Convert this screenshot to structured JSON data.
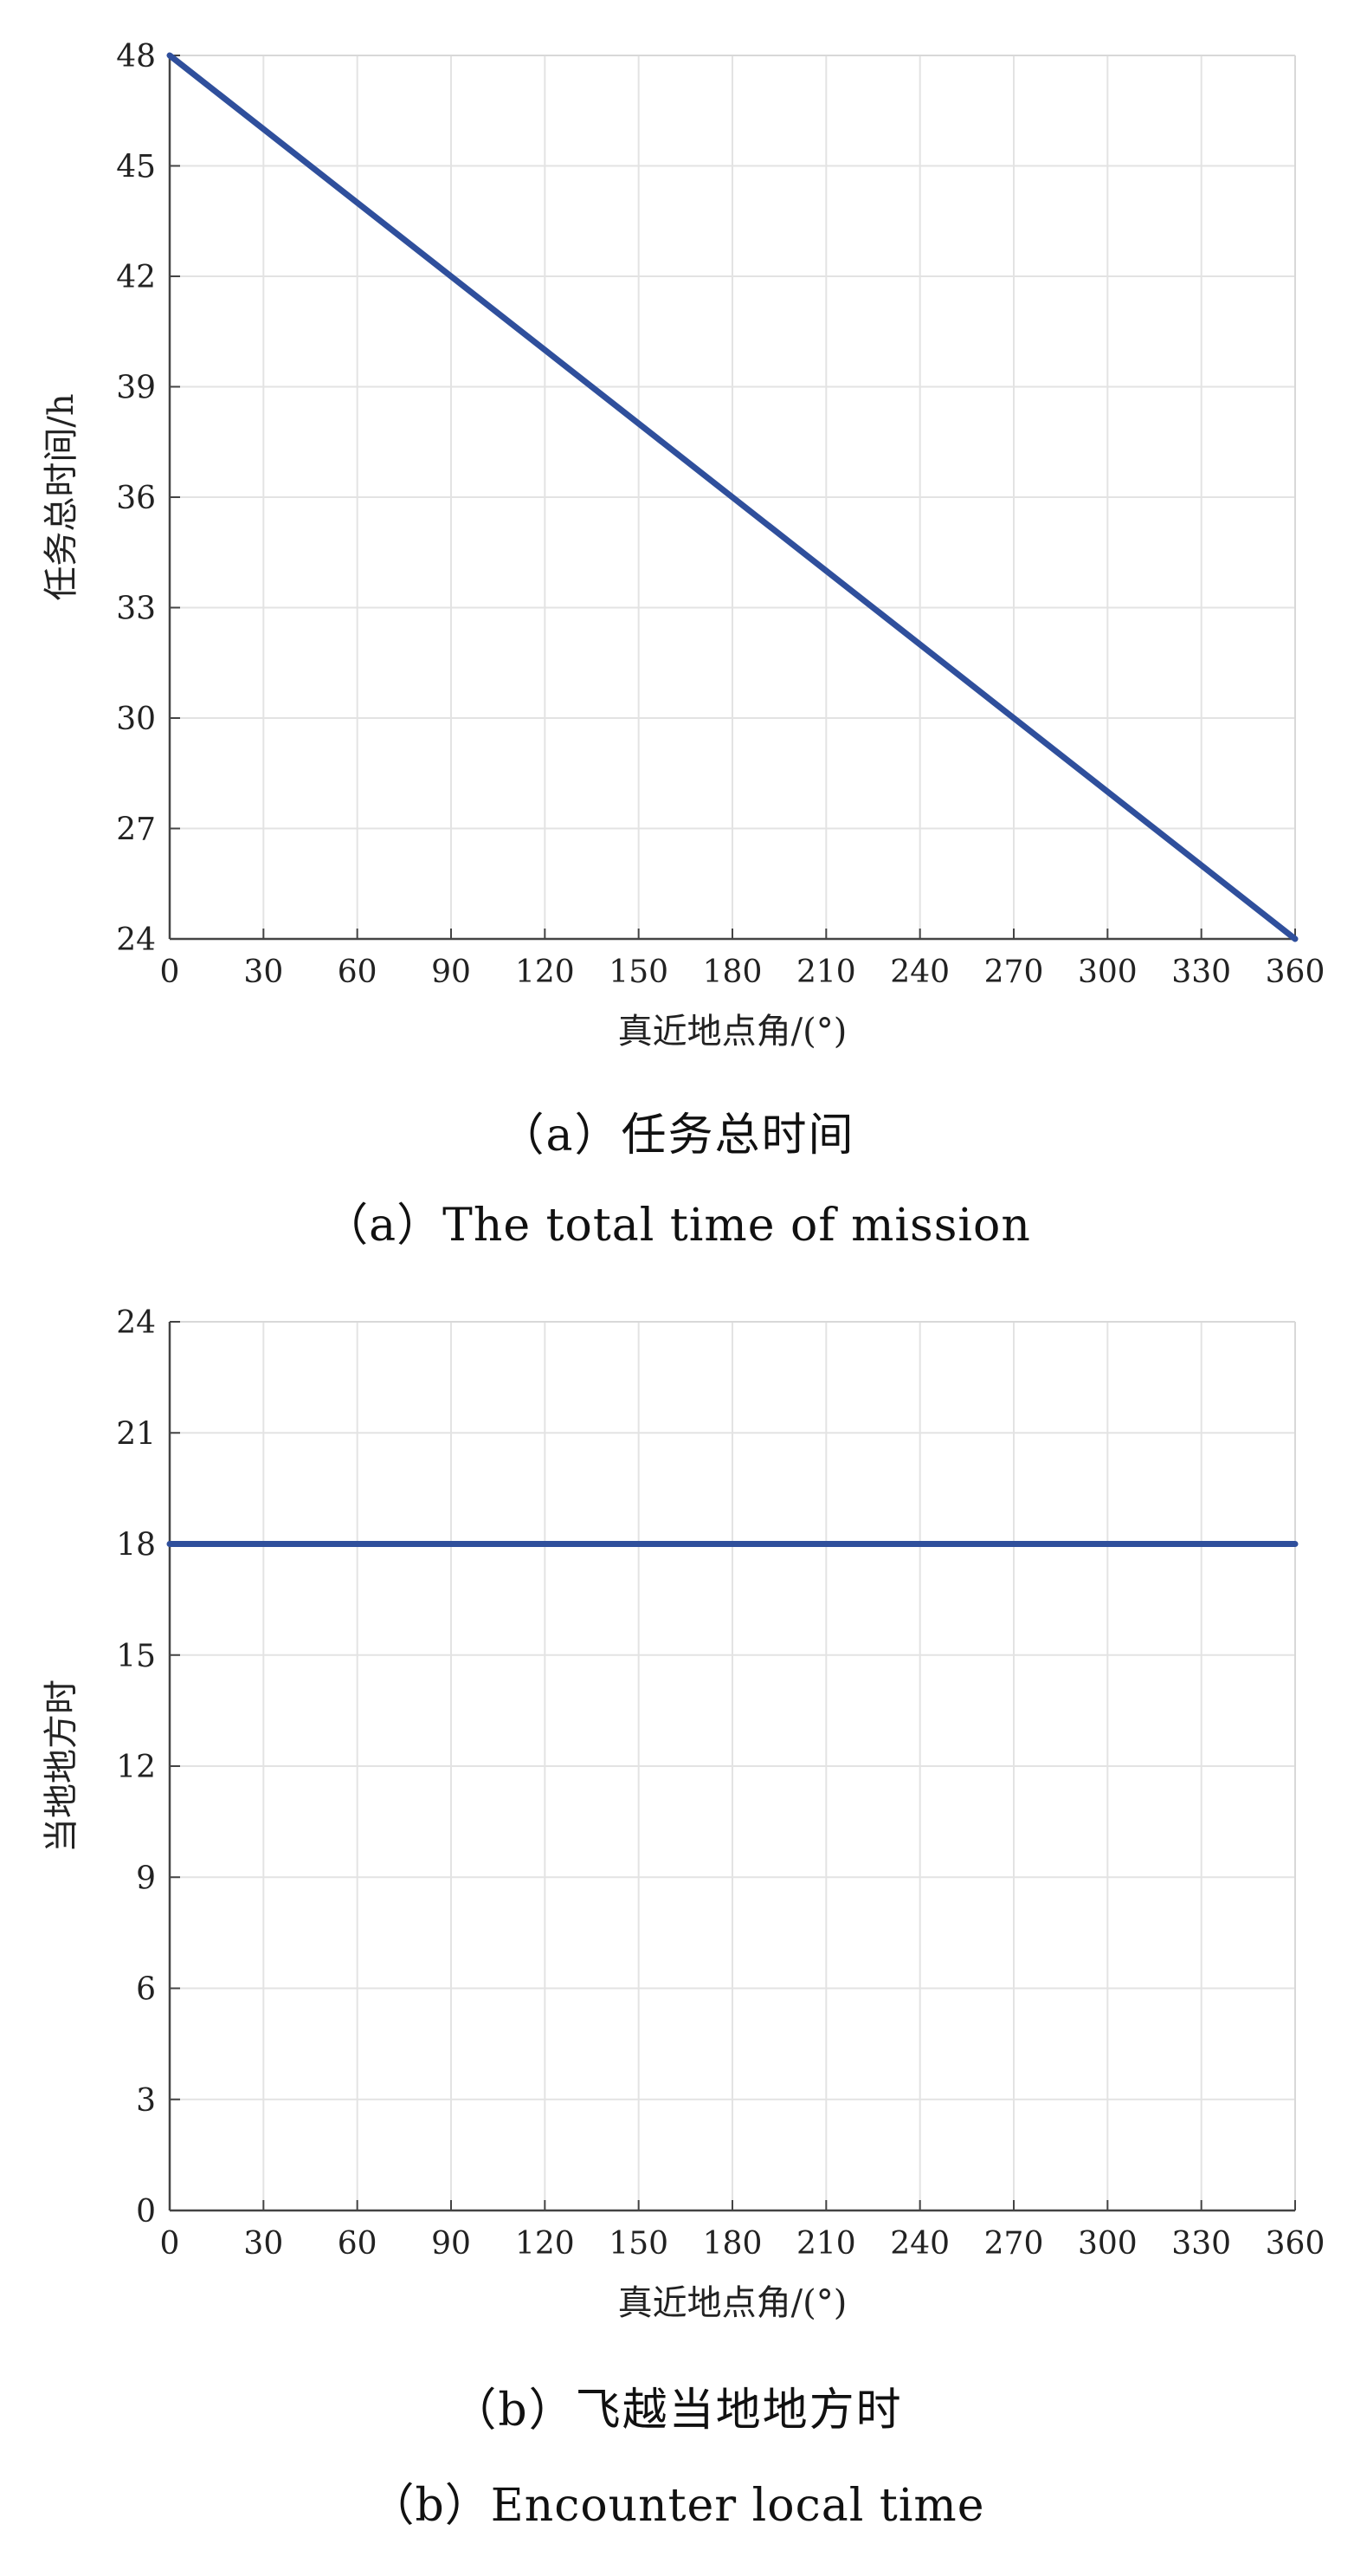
{
  "charts": [
    {
      "caption_cn": "（a）任务总时间",
      "caption_en": "（a）The total time of mission"
    },
    {
      "caption_cn": "（b）飞越当地地方时",
      "caption_en": "（b）Encounter local time"
    }
  ],
  "chart_data": [
    {
      "type": "line",
      "title": "",
      "xlabel": "真近地点角/(°)",
      "ylabel": "任务总时间/h",
      "xlim": [
        0,
        360
      ],
      "ylim": [
        24,
        48
      ],
      "x_ticks": [
        0,
        30,
        60,
        90,
        120,
        150,
        180,
        210,
        240,
        270,
        300,
        330,
        360
      ],
      "y_ticks": [
        24,
        27,
        30,
        33,
        36,
        39,
        42,
        45,
        48
      ],
      "grid": true,
      "series": [
        {
          "x": [
            0,
            360
          ],
          "y": [
            48,
            24
          ],
          "color": "#2f4f9c"
        }
      ]
    },
    {
      "type": "line",
      "title": "",
      "xlabel": "真近地点角/(°)",
      "ylabel": "当地地方时",
      "xlim": [
        0,
        360
      ],
      "ylim": [
        0,
        24
      ],
      "x_ticks": [
        0,
        30,
        60,
        90,
        120,
        150,
        180,
        210,
        240,
        270,
        300,
        330,
        360
      ],
      "y_ticks": [
        0,
        3,
        6,
        9,
        12,
        15,
        18,
        21,
        24
      ],
      "grid": true,
      "series": [
        {
          "x": [
            0,
            360
          ],
          "y": [
            18,
            18
          ],
          "color": "#2f4f9c"
        }
      ]
    }
  ]
}
